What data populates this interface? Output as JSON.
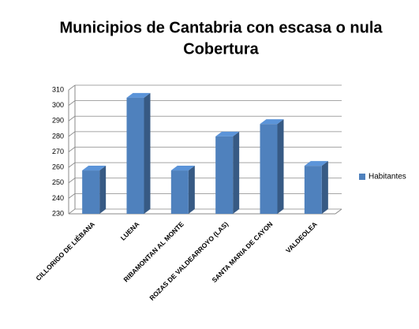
{
  "chart_data": {
    "type": "bar3d",
    "title_lines": [
      "Municipios de Cantabria con escasa o nula",
      "Cobertura"
    ],
    "categories": [
      "CILLORIGO DE LIÉBANA",
      "LUENA",
      "RIBAMONTAN AL MONTE",
      "ROZAS DE VALDEARROYO (LAS)",
      "SANTA MARIA DE CAYON",
      "VALDEOLEA"
    ],
    "series": [
      {
        "name": "Habitantes",
        "color": "#4f81bd",
        "values": [
          258,
          305,
          258,
          280,
          288,
          261
        ]
      }
    ],
    "ylim": [
      230,
      310
    ],
    "yticks": [
      230,
      240,
      250,
      260,
      270,
      280,
      290,
      300,
      310
    ],
    "grid": true,
    "legend": "right"
  }
}
